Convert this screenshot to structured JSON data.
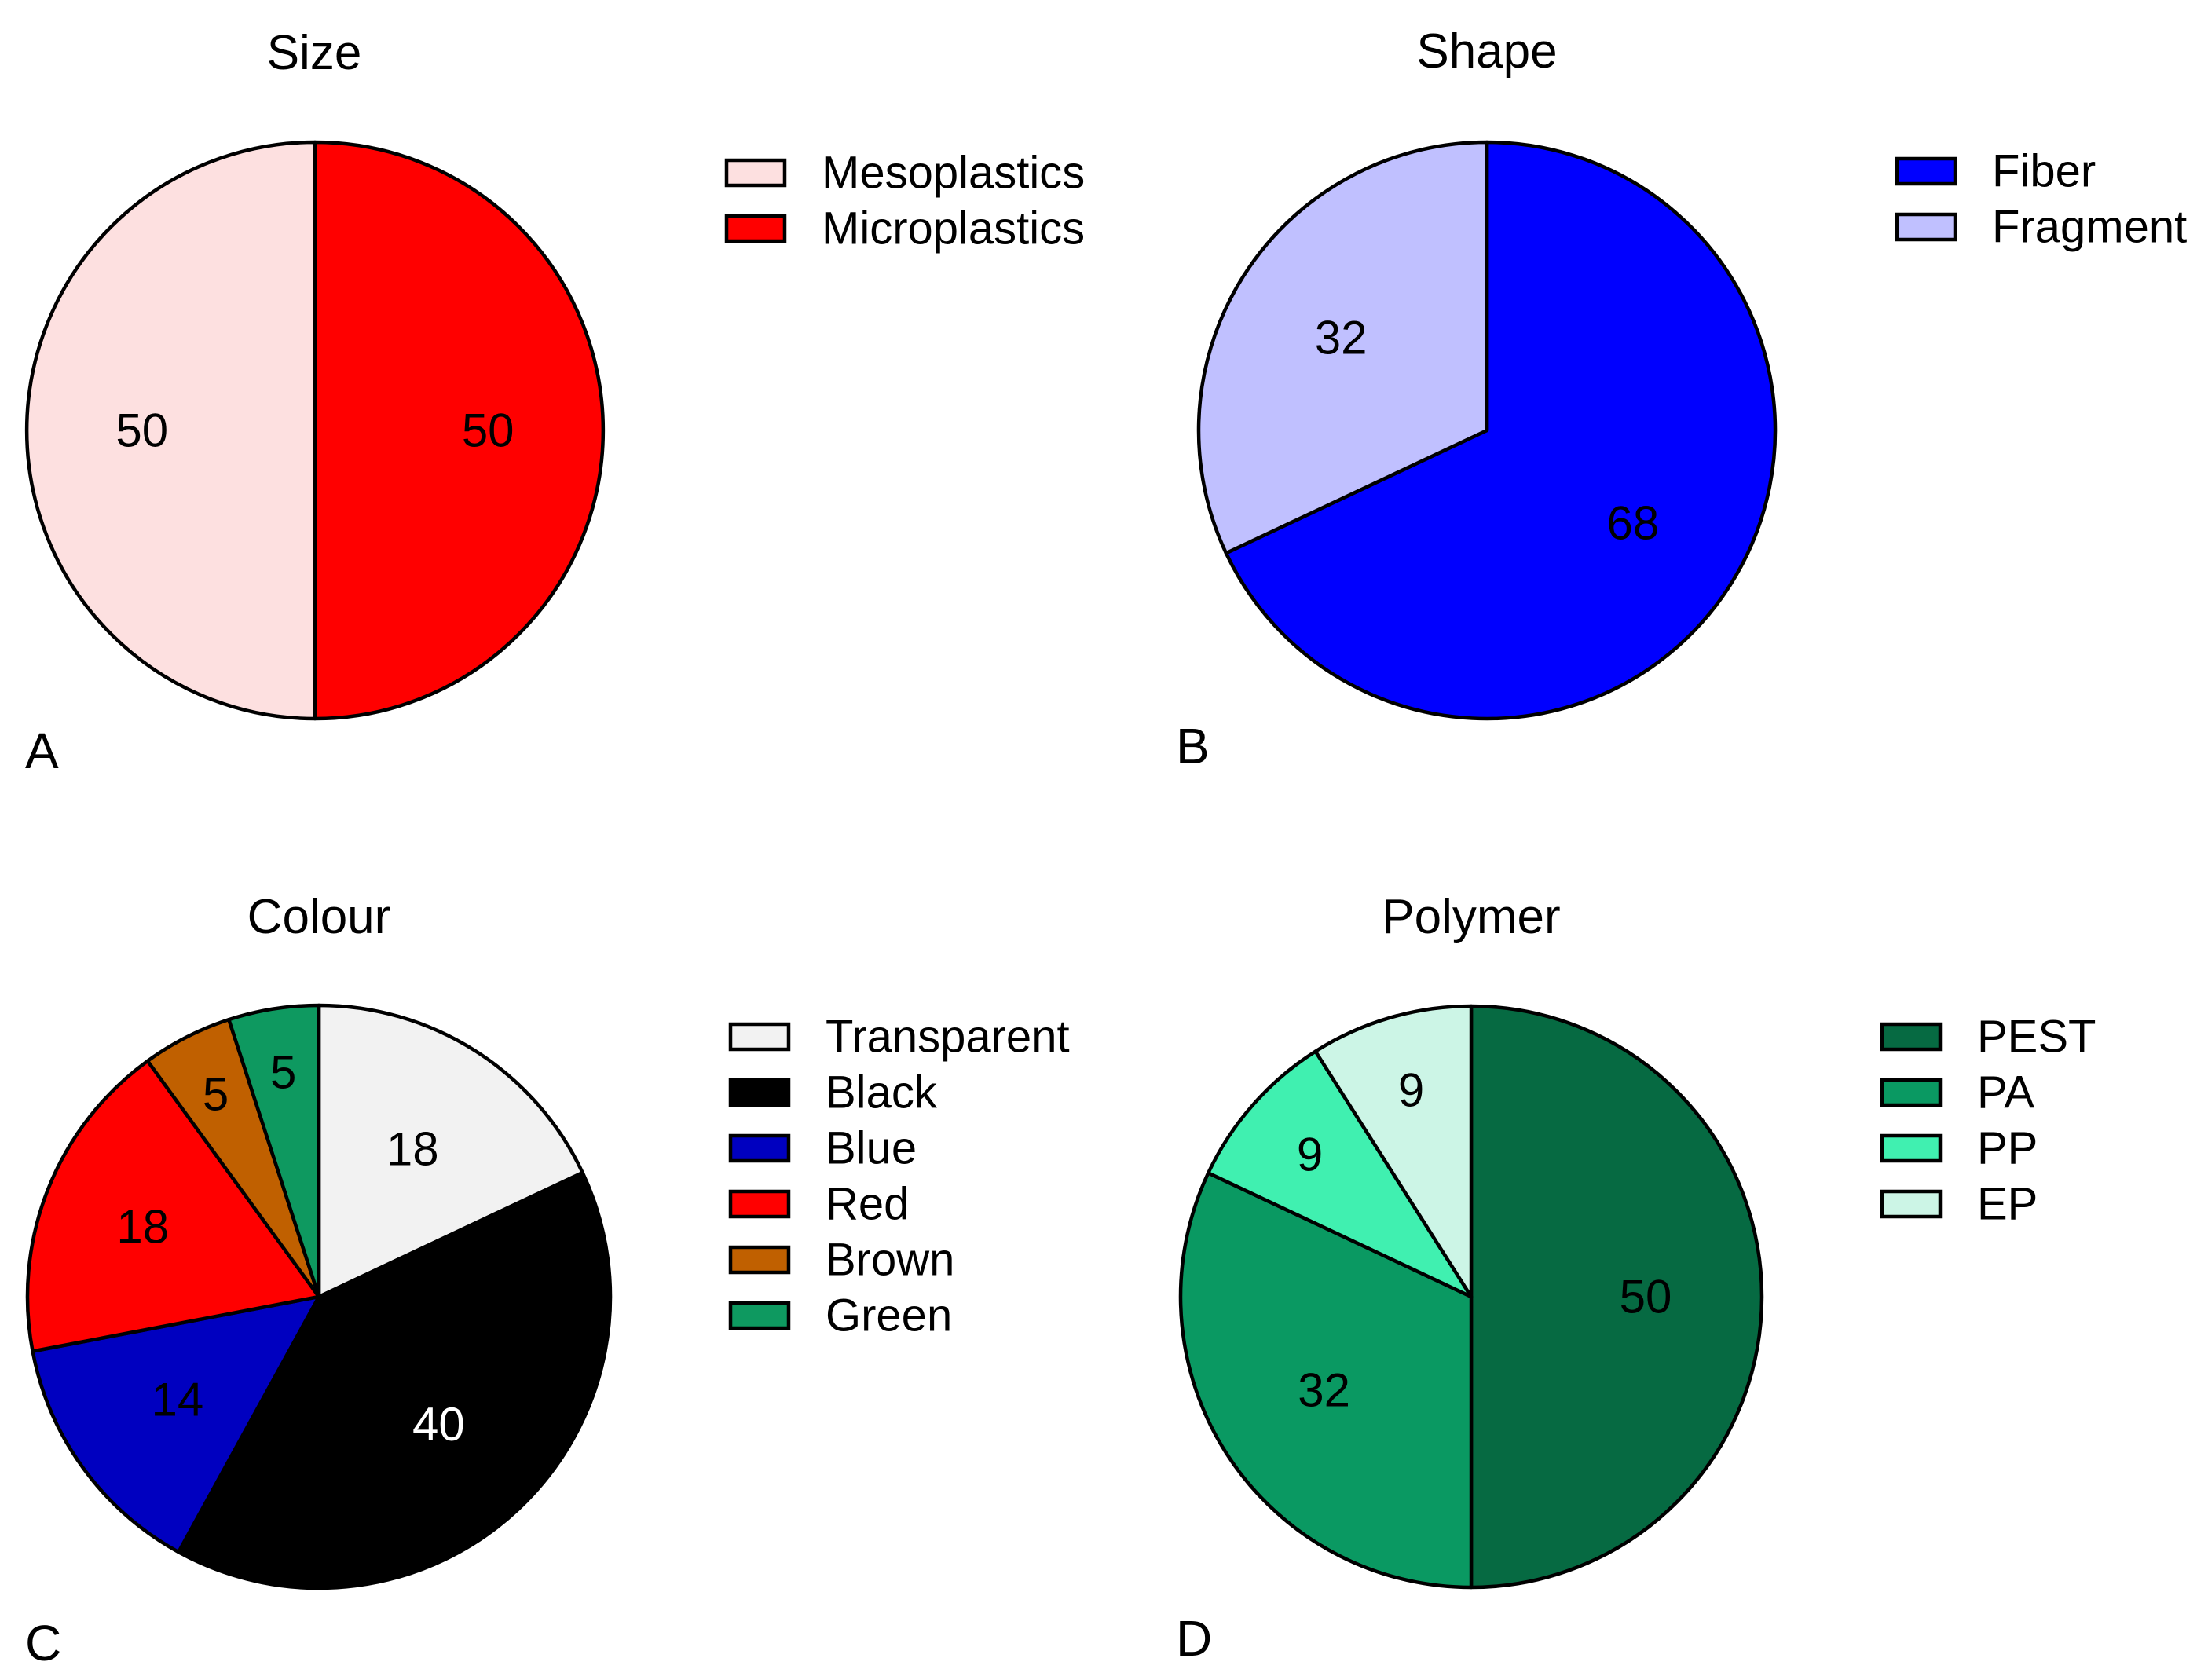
{
  "chart_data": [
    {
      "type": "pie",
      "panel": "A",
      "title": "Size",
      "start": "top",
      "direction": "counterclockwise",
      "slices": [
        {
          "label": "Mesoplastics",
          "value": 50,
          "color": "#FDE0E0",
          "label_color": "#000000"
        },
        {
          "label": "Microplastics",
          "value": 50,
          "color": "#FF0000",
          "label_color": "#000000"
        }
      ],
      "legend": [
        "Mesoplastics",
        "Microplastics"
      ],
      "legend_position": "right"
    },
    {
      "type": "pie",
      "panel": "B",
      "title": "Shape",
      "start": "top",
      "direction": "clockwise",
      "slices": [
        {
          "label": "Fiber",
          "value": 68,
          "color": "#0000FF",
          "label_color": "#000000"
        },
        {
          "label": "Fragment",
          "value": 32,
          "color": "#C0C0FF",
          "label_color": "#000000"
        }
      ],
      "legend": [
        "Fiber",
        "Fragment"
      ],
      "legend_position": "right"
    },
    {
      "type": "pie",
      "panel": "C",
      "title": "Colour",
      "start": "top",
      "direction": "clockwise",
      "slices": [
        {
          "label": "Transparent",
          "value": 18,
          "color": "#F2F2F2",
          "label_color": "#000000"
        },
        {
          "label": "Black",
          "value": 40,
          "color": "#000000",
          "label_color": "#FFFFFF"
        },
        {
          "label": "Blue",
          "value": 14,
          "color": "#0000C0",
          "label_color": "#000000"
        },
        {
          "label": "Red",
          "value": 18,
          "color": "#FF0000",
          "label_color": "#000000"
        },
        {
          "label": "Brown",
          "value": 5,
          "color": "#C06000",
          "label_color": "#000000"
        },
        {
          "label": "Green",
          "value": 5,
          "color": "#0E9960",
          "label_color": "#000000"
        }
      ],
      "legend": [
        "Transparent",
        "Black",
        "Blue",
        "Red",
        "Brown",
        "Green"
      ],
      "legend_position": "right"
    },
    {
      "type": "pie",
      "panel": "D",
      "title": "Polymer",
      "start": "top",
      "direction": "clockwise",
      "slices": [
        {
          "label": "PEST",
          "value": 50,
          "color": "#066A42",
          "label_color": "#000000"
        },
        {
          "label": "PA",
          "value": 32,
          "color": "#0A9962",
          "label_color": "#000000"
        },
        {
          "label": "PP",
          "value": 9,
          "color": "#40F0B0",
          "label_color": "#000000"
        },
        {
          "label": "EP",
          "value": 9,
          "color": "#CCF5E6",
          "label_color": "#000000"
        }
      ],
      "legend": [
        "PEST",
        "PA",
        "PP",
        "EP"
      ],
      "legend_position": "right"
    }
  ]
}
